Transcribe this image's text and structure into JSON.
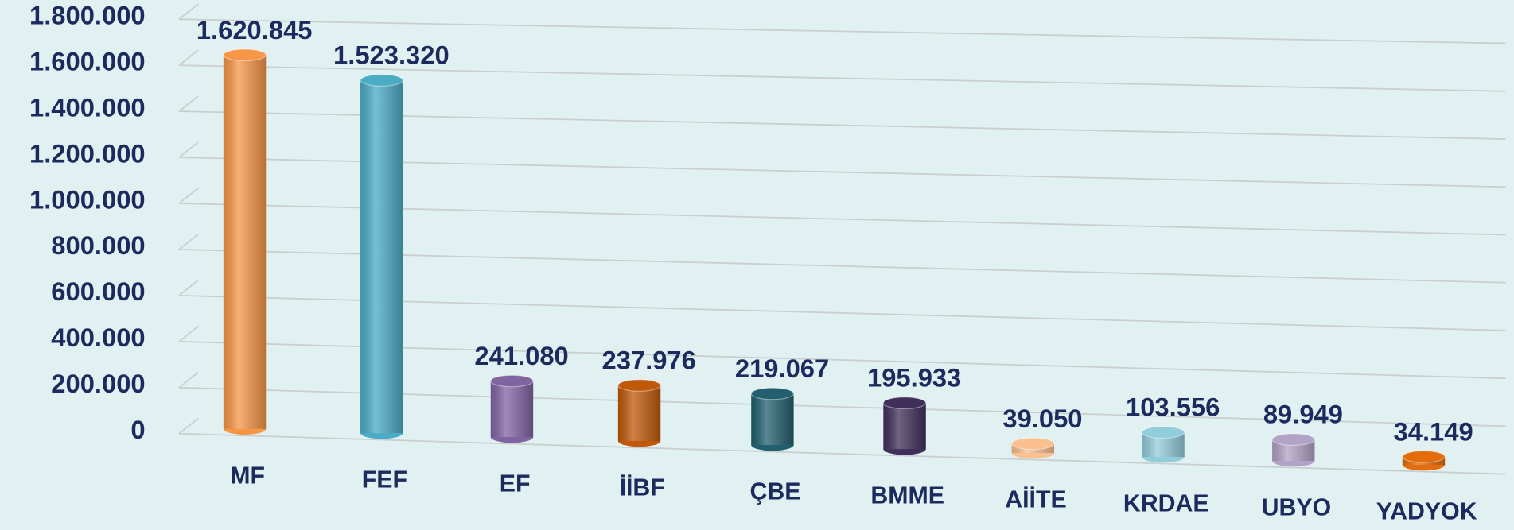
{
  "chart_data": {
    "type": "bar",
    "categories": [
      "MF",
      "FEF",
      "EF",
      "İİBF",
      "ÇBE",
      "BMME",
      "AİİTE",
      "KRDAE",
      "UBYO",
      "YADYOK"
    ],
    "values": [
      1620845,
      1523320,
      241080,
      237976,
      219067,
      195933,
      39050,
      103556,
      89949,
      34149
    ],
    "value_labels": [
      "1.620.845",
      "1.523.320",
      "241.080",
      "237.976",
      "219.067",
      "195.933",
      "39.050",
      "103.556",
      "89.949",
      "34.149"
    ],
    "colors": [
      "#f79646",
      "#4bacc6",
      "#8064a2",
      "#c0580a",
      "#215f6e",
      "#3f2f5a",
      "#fac090",
      "#92cddc",
      "#b3a2c7",
      "#e46c0a"
    ],
    "ylim": [
      0,
      1800000
    ],
    "yticks": [
      0,
      {
        "value": 200000,
        "label": "200.000"
      },
      {
        "value": 400000,
        "label": "400.000"
      },
      {
        "value": 600000,
        "label": "600.000"
      },
      {
        "value": 800000,
        "label": "800.000"
      },
      {
        "value": 1000000,
        "label": "1.000.000"
      },
      {
        "value": 1200000,
        "label": "1.200.000"
      },
      {
        "value": 1400000,
        "label": "1.400.000"
      },
      {
        "value": 1600000,
        "label": "1.600.000"
      },
      {
        "value": 1800000,
        "label": "1.800.000"
      }
    ],
    "grid": true
  }
}
